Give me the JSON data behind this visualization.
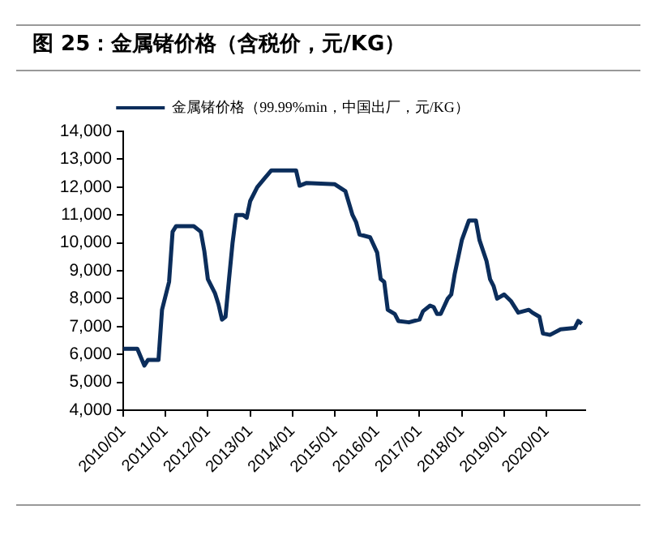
{
  "chart_data": {
    "type": "line",
    "title": "图 25：金属锗价格（含税价，元/KG）",
    "x": [
      "2010-01",
      "2010-05",
      "2010-07",
      "2010-08",
      "2010-11",
      "2010-12",
      "2011-02",
      "2011-03",
      "2011-04",
      "2011-09",
      "2011-11",
      "2011-12",
      "2012-01",
      "2012-03",
      "2012-04",
      "2012-05",
      "2012-06",
      "2012-07",
      "2012-08",
      "2012-09",
      "2012-11",
      "2012-12",
      "2013-01",
      "2013-03",
      "2013-05",
      "2013-07",
      "2014-02",
      "2014-03",
      "2014-05",
      "2015-01",
      "2015-04",
      "2015-06",
      "2015-07",
      "2015-08",
      "2015-11",
      "2016-01",
      "2016-02",
      "2016-03",
      "2016-04",
      "2016-06",
      "2016-07",
      "2016-10",
      "2017-01",
      "2017-02",
      "2017-04",
      "2017-05",
      "2017-06",
      "2017-07",
      "2017-09",
      "2017-10",
      "2017-11",
      "2018-01",
      "2018-03",
      "2018-05",
      "2018-06",
      "2018-08",
      "2018-09",
      "2018-10",
      "2018-11",
      "2019-01",
      "2019-03",
      "2019-05",
      "2019-08",
      "2019-09",
      "2019-11",
      "2019-12",
      "2020-02",
      "2020-05",
      "2020-09",
      "2020-10",
      "2020-11"
    ],
    "series": [
      {
        "name": "金属锗价格（99.99%min，中国出厂，元/KG）",
        "color": "#0b2d5b",
        "values": [
          6200,
          6200,
          5600,
          5800,
          5800,
          7600,
          8600,
          10400,
          10600,
          10600,
          10400,
          9700,
          8700,
          8200,
          7800,
          7250,
          7350,
          8700,
          10000,
          11000,
          11000,
          10900,
          11500,
          12000,
          12300,
          12600,
          12600,
          12050,
          12150,
          12100,
          11850,
          11000,
          10750,
          10300,
          10200,
          9650,
          8700,
          8600,
          7600,
          7450,
          7200,
          7150,
          7250,
          7550,
          7750,
          7700,
          7450,
          7450,
          8000,
          8150,
          8900,
          10100,
          10800,
          10800,
          10100,
          9350,
          8700,
          8450,
          8000,
          8150,
          7900,
          7500,
          7600,
          7500,
          7350,
          6750,
          6700,
          6900,
          6950,
          7200,
          7100
        ]
      }
    ],
    "xlim": [
      "2010-01",
      "2020-12"
    ],
    "xticks": [
      {
        "value": "2010-01",
        "label": "2010/01"
      },
      {
        "value": "2011-01",
        "label": "2011/01"
      },
      {
        "value": "2012-01",
        "label": "2012/01"
      },
      {
        "value": "2013-01",
        "label": "2013/01"
      },
      {
        "value": "2014-01",
        "label": "2014/01"
      },
      {
        "value": "2015-01",
        "label": "2015/01"
      },
      {
        "value": "2016-01",
        "label": "2016/01"
      },
      {
        "value": "2017-01",
        "label": "2017/01"
      },
      {
        "value": "2018-01",
        "label": "2018/01"
      },
      {
        "value": "2019-01",
        "label": "2019/01"
      },
      {
        "value": "2020-01",
        "label": "2020/01"
      }
    ],
    "ylim": [
      4000,
      14000
    ],
    "yticks": [
      {
        "value": 4000,
        "label": "4,000"
      },
      {
        "value": 5000,
        "label": "5,000"
      },
      {
        "value": 6000,
        "label": "6,000"
      },
      {
        "value": 7000,
        "label": "7,000"
      },
      {
        "value": 8000,
        "label": "8,000"
      },
      {
        "value": 9000,
        "label": "9,000"
      },
      {
        "value": 10000,
        "label": "10,000"
      },
      {
        "value": 11000,
        "label": "11,000"
      },
      {
        "value": 12000,
        "label": "12,000"
      },
      {
        "value": 13000,
        "label": "13,000"
      },
      {
        "value": 14000,
        "label": "14,000"
      }
    ],
    "grid": false,
    "legend": "top",
    "marker": "none",
    "line_style": "solid"
  }
}
